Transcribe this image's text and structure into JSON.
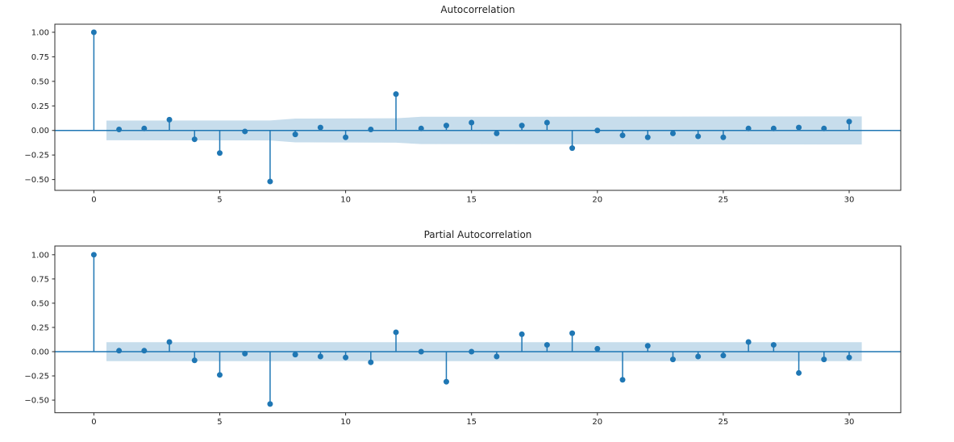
{
  "figure": {
    "background": "#ffffff",
    "accent_color": "#1f77b4",
    "band_color": "rgba(31,119,180,0.25)",
    "spine_color": "#2b2b2b",
    "tick_color": "#1c1c1c"
  },
  "chart_data": [
    {
      "type": "stem",
      "title": "Autocorrelation",
      "x": [
        0,
        1,
        2,
        3,
        4,
        5,
        6,
        7,
        8,
        9,
        10,
        11,
        12,
        13,
        14,
        15,
        16,
        17,
        18,
        19,
        20,
        21,
        22,
        23,
        24,
        25,
        26,
        27,
        28,
        29,
        30
      ],
      "values": [
        1.0,
        0.01,
        0.02,
        0.11,
        -0.09,
        -0.23,
        -0.01,
        -0.52,
        -0.04,
        0.03,
        -0.07,
        0.01,
        0.37,
        0.02,
        0.05,
        0.08,
        -0.03,
        0.05,
        0.08,
        -0.18,
        0.0,
        -0.05,
        -0.07,
        -0.03,
        -0.06,
        -0.07,
        0.02,
        0.02,
        0.03,
        0.02,
        0.09
      ],
      "xlabel": "",
      "ylabel": "",
      "xlim": [
        -1.55,
        32.05
      ],
      "ylim": [
        -0.61,
        1.082
      ],
      "grid": false,
      "legend": null,
      "x_ticks": [
        0,
        5,
        10,
        15,
        20,
        25,
        30
      ],
      "x_tick_labels": [
        "0",
        "5",
        "10",
        "15",
        "20",
        "25",
        "30"
      ],
      "y_ticks": [
        1.0,
        0.75,
        0.5,
        0.25,
        0.0,
        -0.25,
        -0.5
      ],
      "y_tick_labels": [
        "1.00",
        "0.75",
        "0.50",
        "0.25",
        "0.00",
        "−0.25",
        "−0.50"
      ],
      "conf_band": {
        "x": [
          0.5,
          7.0,
          8.0,
          12.0,
          13.0,
          30.5
        ],
        "upper": [
          0.1,
          0.102,
          0.121,
          0.124,
          0.139,
          0.143
        ],
        "lower": [
          -0.1,
          -0.102,
          -0.121,
          -0.124,
          -0.139,
          -0.143
        ]
      }
    },
    {
      "type": "stem",
      "title": "Partial Autocorrelation",
      "x": [
        0,
        1,
        2,
        3,
        4,
        5,
        6,
        7,
        8,
        9,
        10,
        11,
        12,
        13,
        14,
        15,
        16,
        17,
        18,
        19,
        20,
        21,
        22,
        23,
        24,
        25,
        26,
        27,
        28,
        29,
        30
      ],
      "values": [
        1.0,
        0.01,
        0.01,
        0.1,
        -0.09,
        -0.24,
        -0.02,
        -0.54,
        -0.03,
        -0.05,
        -0.06,
        -0.11,
        0.2,
        0.0,
        -0.31,
        0.0,
        -0.05,
        0.18,
        0.07,
        0.19,
        0.03,
        -0.29,
        0.06,
        -0.08,
        -0.05,
        -0.04,
        0.1,
        0.07,
        -0.22,
        -0.08,
        -0.06
      ],
      "xlabel": "",
      "ylabel": "",
      "xlim": [
        -1.55,
        32.05
      ],
      "ylim": [
        -0.63,
        1.09
      ],
      "grid": false,
      "legend": null,
      "x_ticks": [
        0,
        5,
        10,
        15,
        20,
        25,
        30
      ],
      "x_tick_labels": [
        "0",
        "5",
        "10",
        "15",
        "20",
        "25",
        "30"
      ],
      "y_ticks": [
        1.0,
        0.75,
        0.5,
        0.25,
        0.0,
        -0.25,
        -0.5
      ],
      "y_tick_labels": [
        "1.00",
        "0.75",
        "0.50",
        "0.25",
        "0.00",
        "−0.25",
        "−0.50"
      ],
      "conf_band": {
        "x": [
          0.5,
          30.5
        ],
        "upper": [
          0.098,
          0.098
        ],
        "lower": [
          -0.098,
          -0.098
        ]
      }
    }
  ]
}
